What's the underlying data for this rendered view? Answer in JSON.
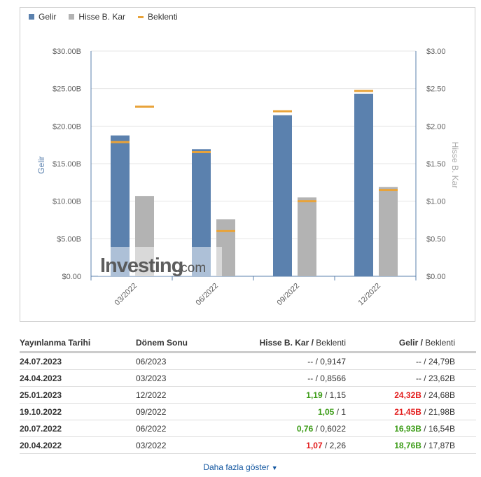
{
  "legend": [
    {
      "label": "Gelir",
      "color": "#5b81ae"
    },
    {
      "label": "Hisse B. Kar",
      "color": "#b3b3b3"
    },
    {
      "label": "Beklenti",
      "color": "#e8a33a"
    }
  ],
  "chart_data": {
    "type": "bar",
    "categories": [
      "03/2022",
      "06/2022",
      "09/2022",
      "12/2022"
    ],
    "series": [
      {
        "name": "Gelir",
        "axis": "left",
        "unit": "B USD",
        "values": [
          18.76,
          16.93,
          21.45,
          24.32
        ],
        "forecast": [
          17.87,
          16.54,
          21.98,
          24.68
        ]
      },
      {
        "name": "Hisse B. Kar",
        "axis": "right",
        "unit": "USD",
        "values": [
          1.07,
          0.76,
          1.05,
          1.19
        ],
        "forecast": [
          2.26,
          0.6022,
          1.0,
          1.15
        ]
      }
    ],
    "ylabel": "Gelir",
    "y2label": "Hisse B. Kar",
    "ylim": [
      0,
      30
    ],
    "y2lim": [
      0,
      3
    ],
    "yticks": [
      "$0.00",
      "$5.00B",
      "$10.00B",
      "$15.00B",
      "$20.00B",
      "$25.00B",
      "$30.00B"
    ],
    "y2ticks": [
      "$0.00",
      "$0.50",
      "$1.00",
      "$1.50",
      "$2.00",
      "$2.50",
      "$3.00"
    ],
    "grid": true,
    "legend": "top-left",
    "forecast_name": "Beklenti"
  },
  "watermark": "Investing.com",
  "table": {
    "headers": {
      "date": "Yayınlanma Tarihi",
      "period": "Dönem Sonu",
      "eps": "Hisse B. Kar",
      "eps_f": "Beklenti",
      "rev": "Gelir",
      "rev_f": "Beklenti"
    },
    "rows": [
      {
        "date": "24.07.2023",
        "period": "06/2023",
        "eps": "--",
        "eps_f": "0,9147",
        "rev": "--",
        "rev_f": "24,79B",
        "eps_c": "",
        "rev_c": ""
      },
      {
        "date": "24.04.2023",
        "period": "03/2023",
        "eps": "--",
        "eps_f": "0,8566",
        "rev": "--",
        "rev_f": "23,62B",
        "eps_c": "",
        "rev_c": ""
      },
      {
        "date": "25.01.2023",
        "period": "12/2022",
        "eps": "1,19",
        "eps_f": "1,15",
        "rev": "24,32B",
        "rev_f": "24,68B",
        "eps_c": "g",
        "rev_c": "rd"
      },
      {
        "date": "19.10.2022",
        "period": "09/2022",
        "eps": "1,05",
        "eps_f": "1",
        "rev": "21,45B",
        "rev_f": "21,98B",
        "eps_c": "g",
        "rev_c": "rd"
      },
      {
        "date": "20.07.2022",
        "period": "06/2022",
        "eps": "0,76",
        "eps_f": "0,6022",
        "rev": "16,93B",
        "rev_f": "16,54B",
        "eps_c": "g",
        "rev_c": "g"
      },
      {
        "date": "20.04.2022",
        "period": "03/2022",
        "eps": "1,07",
        "eps_f": "2,26",
        "rev": "18,76B",
        "rev_f": "17,87B",
        "eps_c": "rd",
        "rev_c": "g"
      }
    ]
  },
  "more": "Daha fazla göster"
}
